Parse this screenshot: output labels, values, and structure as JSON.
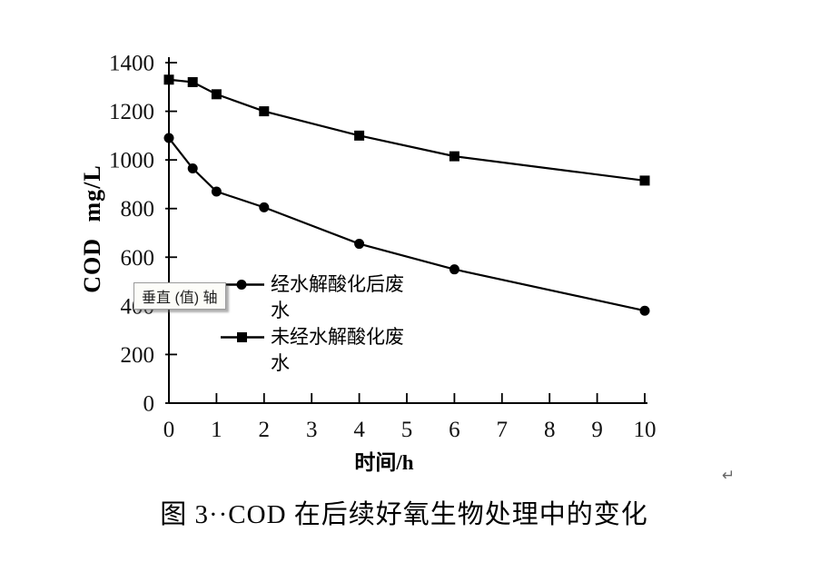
{
  "window": {
    "background": "#ffffff",
    "accent_color": "#000000"
  },
  "tooltip": {
    "text": "垂直 (值) 轴"
  },
  "annotations": {
    "return_mark": "↵"
  },
  "chart_data": {
    "type": "line",
    "title": "图 3··COD 在后续好氧生物处理中的变化",
    "xlabel": "时间/h",
    "ylabel": "COD mg/L",
    "x": [
      0,
      0.5,
      1,
      2,
      4,
      6,
      10
    ],
    "xlim": [
      0,
      10
    ],
    "ylim": [
      0,
      1400
    ],
    "xticks": [
      0,
      1,
      2,
      3,
      4,
      5,
      6,
      7,
      8,
      9,
      10
    ],
    "yticks": [
      0,
      200,
      400,
      600,
      800,
      1000,
      1200,
      1400
    ],
    "grid": false,
    "legend_position": "inside-left",
    "line_color": "#000000",
    "series": [
      {
        "name": "经水解酸化后废水",
        "marker": "circle",
        "values": [
          1090,
          965,
          870,
          805,
          655,
          550,
          380
        ]
      },
      {
        "name": "未经水解酸化废水",
        "marker": "square",
        "values": [
          1330,
          1320,
          1270,
          1200,
          1100,
          1015,
          915
        ]
      }
    ]
  }
}
